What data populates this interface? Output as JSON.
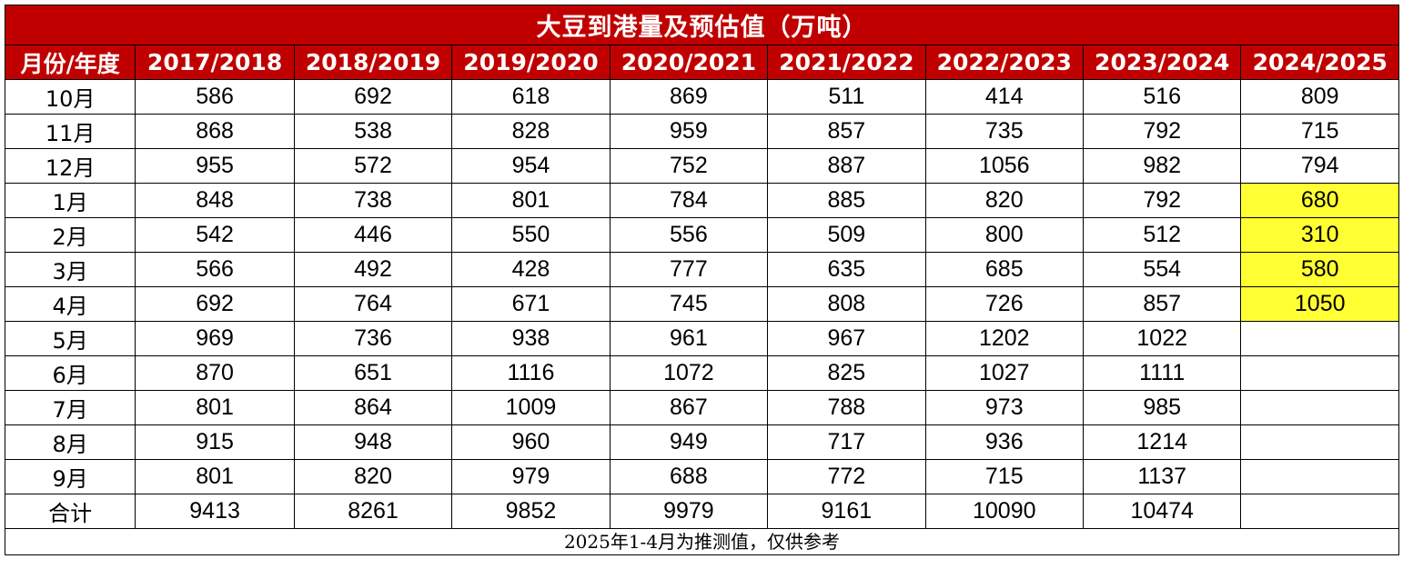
{
  "chart_data": {
    "type": "table",
    "title": "大豆到港量及预估值（万吨）",
    "corner_header": "月份/年度",
    "columns": [
      "2017/2018",
      "2018/2019",
      "2019/2020",
      "2020/2021",
      "2021/2022",
      "2022/2023",
      "2023/2024",
      "2024/2025"
    ],
    "rows": [
      {
        "label": "10月",
        "values": [
          "586",
          "692",
          "618",
          "869",
          "511",
          "414",
          "516",
          "809"
        ]
      },
      {
        "label": "11月",
        "values": [
          "868",
          "538",
          "828",
          "959",
          "857",
          "735",
          "792",
          "715"
        ]
      },
      {
        "label": "12月",
        "values": [
          "955",
          "572",
          "954",
          "752",
          "887",
          "1056",
          "982",
          "794"
        ]
      },
      {
        "label": "1月",
        "values": [
          "848",
          "738",
          "801",
          "784",
          "885",
          "820",
          "792",
          "680"
        ]
      },
      {
        "label": "2月",
        "values": [
          "542",
          "446",
          "550",
          "556",
          "509",
          "800",
          "512",
          "310"
        ]
      },
      {
        "label": "3月",
        "values": [
          "566",
          "492",
          "428",
          "777",
          "635",
          "685",
          "554",
          "580"
        ]
      },
      {
        "label": "4月",
        "values": [
          "692",
          "764",
          "671",
          "745",
          "808",
          "726",
          "857",
          "1050"
        ]
      },
      {
        "label": "5月",
        "values": [
          "969",
          "736",
          "938",
          "961",
          "967",
          "1202",
          "1022",
          ""
        ]
      },
      {
        "label": "6月",
        "values": [
          "870",
          "651",
          "1116",
          "1072",
          "825",
          "1027",
          "1111",
          ""
        ]
      },
      {
        "label": "7月",
        "values": [
          "801",
          "864",
          "1009",
          "867",
          "788",
          "973",
          "985",
          ""
        ]
      },
      {
        "label": "8月",
        "values": [
          "915",
          "948",
          "960",
          "949",
          "717",
          "936",
          "1214",
          ""
        ]
      },
      {
        "label": "9月",
        "values": [
          "801",
          "820",
          "979",
          "688",
          "772",
          "715",
          "1137",
          ""
        ]
      },
      {
        "label": "合计",
        "values": [
          "9413",
          "8261",
          "9852",
          "9979",
          "9161",
          "10090",
          "10474",
          ""
        ]
      }
    ],
    "highlighted_cells": [
      {
        "row": 3,
        "col": 7
      },
      {
        "row": 4,
        "col": 7
      },
      {
        "row": 5,
        "col": 7
      },
      {
        "row": 6,
        "col": 7
      }
    ],
    "footnote": "2025年1-4月为推测值，仅供参考"
  },
  "colors": {
    "header_bg": "#c00000",
    "header_text": "#ffffff",
    "highlight": "#ffff33",
    "border": "#000000"
  }
}
